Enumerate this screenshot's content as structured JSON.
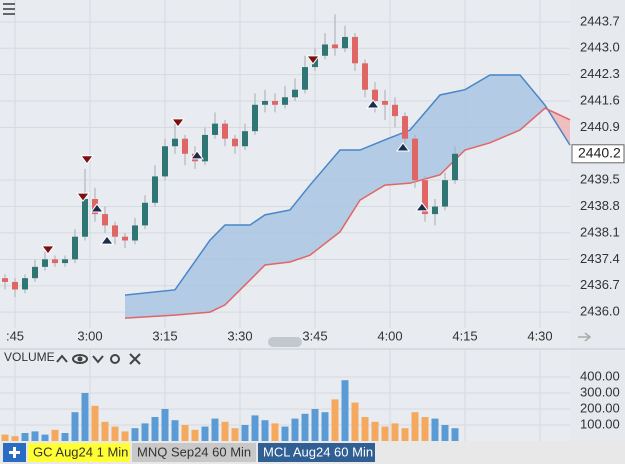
{
  "chart_data": {
    "type": "candlestick",
    "up_color": "#2f7573",
    "down_color": "#e06666",
    "x": [
      43,
      45,
      47,
      49,
      51,
      53,
      55,
      57,
      59,
      61,
      63,
      65,
      67,
      69,
      71,
      73,
      75,
      77,
      79,
      81,
      83,
      85,
      87,
      89,
      91,
      93,
      95,
      97,
      99,
      101,
      103,
      105,
      107,
      109,
      111,
      113,
      115,
      117,
      119,
      121,
      123,
      125,
      127,
      129,
      131,
      133
    ],
    "open": [
      2436.9,
      2436.8,
      2436.6,
      2436.9,
      2437.2,
      2437.4,
      2437.3,
      2437.4,
      2438.0,
      2439.0,
      2438.6,
      2438.3,
      2438.0,
      2437.9,
      2438.3,
      2438.9,
      2439.6,
      2440.4,
      2440.6,
      2440.2,
      2440.0,
      2440.7,
      2441.0,
      2440.6,
      2440.4,
      2440.8,
      2441.5,
      2441.6,
      2441.5,
      2441.7,
      2441.9,
      2442.5,
      2442.8,
      2443.1,
      2443.0,
      2443.3,
      2442.6,
      2441.9,
      2441.6,
      2441.5,
      2441.2,
      2440.6,
      2439.5,
      2438.6,
      2438.8,
      2439.5
    ],
    "high": [
      2437.0,
      2436.9,
      2437.0,
      2437.4,
      2437.6,
      2437.5,
      2437.5,
      2438.2,
      2439.8,
      2439.3,
      2438.8,
      2438.4,
      2438.1,
      2438.5,
      2439.1,
      2439.9,
      2440.6,
      2441.0,
      2440.7,
      2440.4,
      2440.9,
      2441.3,
      2441.1,
      2440.7,
      2441.0,
      2441.8,
      2441.9,
      2441.8,
      2442.0,
      2442.2,
      2442.8,
      2443.0,
      2443.4,
      2443.9,
      2443.6,
      2443.4,
      2442.7,
      2442.1,
      2441.9,
      2441.7,
      2441.3,
      2440.7,
      2439.6,
      2439.0,
      2439.7,
      2440.4
    ],
    "low": [
      2436.6,
      2436.4,
      2436.5,
      2436.8,
      2437.1,
      2437.2,
      2437.2,
      2437.3,
      2437.9,
      2438.4,
      2438.1,
      2437.8,
      2437.7,
      2437.8,
      2438.2,
      2438.8,
      2439.5,
      2440.2,
      2439.9,
      2439.8,
      2439.9,
      2440.6,
      2440.4,
      2440.2,
      2440.3,
      2440.7,
      2441.3,
      2441.3,
      2441.4,
      2441.6,
      2441.8,
      2442.4,
      2442.7,
      2442.8,
      2442.9,
      2442.4,
      2441.7,
      2441.3,
      2441.1,
      2440.9,
      2440.3,
      2439.3,
      2438.4,
      2438.3,
      2438.7,
      2439.4
    ],
    "close": [
      2436.8,
      2436.6,
      2436.9,
      2437.2,
      2437.4,
      2437.3,
      2437.4,
      2438.0,
      2439.0,
      2438.6,
      2438.3,
      2438.0,
      2437.9,
      2438.3,
      2438.9,
      2439.6,
      2440.4,
      2440.6,
      2440.2,
      2440.0,
      2440.7,
      2441.0,
      2440.6,
      2440.4,
      2440.8,
      2441.5,
      2441.6,
      2441.5,
      2441.7,
      2441.9,
      2442.5,
      2442.8,
      2443.1,
      2443.0,
      2443.3,
      2442.6,
      2441.9,
      2441.6,
      2441.5,
      2441.2,
      2440.6,
      2439.5,
      2438.6,
      2438.8,
      2439.5,
      2440.2
    ],
    "xlim": [
      42,
      156
    ],
    "xticks": [
      {
        "value": 45,
        "label": ":45"
      },
      {
        "value": 60,
        "label": "3:00"
      },
      {
        "value": 75,
        "label": "3:15"
      },
      {
        "value": 90,
        "label": "3:30"
      },
      {
        "value": 105,
        "label": "3:45"
      },
      {
        "value": 120,
        "label": "4:00"
      },
      {
        "value": 135,
        "label": "4:15"
      },
      {
        "value": 150,
        "label": "4:30"
      }
    ],
    "ylim": [
      2435.79,
      2444.28
    ],
    "yticks": [
      2443.7,
      {
        "value": 2443.0,
        "label": "2443.0"
      },
      2442.3,
      2441.6,
      2440.9,
      2439.5,
      2438.8,
      2438.1,
      2437.4,
      2436.7,
      {
        "value": 2436.0,
        "label": "2436.0"
      }
    ],
    "grid": true,
    "last_price": 2440.2,
    "cloud": {
      "up_color": "#a9c6e3",
      "down_color": "#eeb6b8",
      "line_a_color": "#4a86c8",
      "line_b_color": "#e06666",
      "x": [
        67,
        77,
        84,
        87,
        92,
        95,
        100,
        104,
        110,
        114,
        119,
        124,
        130,
        135,
        140,
        146,
        151,
        156
      ],
      "span_a": [
        2436.45,
        2436.59,
        2437.91,
        2438.31,
        2438.31,
        2438.58,
        2438.71,
        2439.37,
        2440.3,
        2440.3,
        2440.57,
        2440.83,
        2441.76,
        2441.9,
        2442.29,
        2442.29,
        2441.49,
        2440.43
      ],
      "span_b": [
        2435.84,
        2435.92,
        2436.0,
        2436.19,
        2436.85,
        2437.25,
        2437.33,
        2437.51,
        2438.13,
        2438.97,
        2439.37,
        2439.42,
        2439.64,
        2440.3,
        2440.49,
        2440.83,
        2441.41,
        2441.1
      ]
    },
    "signals": {
      "sell_color": "#7a1010",
      "buy_color": "#1b2d4f",
      "sell": [
        {
          "x": 51.6,
          "y": 2437.65
        },
        {
          "x": 59.4,
          "y": 2440.04
        },
        {
          "x": 58.6,
          "y": 2439.05
        },
        {
          "x": 77.6,
          "y": 2441.02
        },
        {
          "x": 104.6,
          "y": 2442.69
        }
      ],
      "buy": [
        {
          "x": 61.4,
          "y": 2438.76
        },
        {
          "x": 63.4,
          "y": 2437.91
        },
        {
          "x": 81.4,
          "y": 2440.17
        },
        {
          "x": 116.6,
          "y": 2441.52
        },
        {
          "x": 122.6,
          "y": 2440.38
        },
        {
          "x": 126.4,
          "y": 2438.79
        }
      ]
    },
    "volume": {
      "title": "VOLUME",
      "up_color": "#5b9bd5",
      "down_color": "#f4a95e",
      "values": [
        40,
        30,
        50,
        60,
        40,
        70,
        50,
        180,
        300,
        220,
        120,
        90,
        60,
        80,
        110,
        150,
        200,
        130,
        100,
        70,
        90,
        140,
        120,
        80,
        100,
        160,
        130,
        110,
        90,
        140,
        170,
        200,
        180,
        260,
        380,
        240,
        150,
        120,
        90,
        110,
        80,
        180,
        150,
        140,
        100,
        80
      ],
      "ylim": [
        0,
        475
      ],
      "yticks": [
        {
          "value": 400,
          "label": "400.00"
        },
        {
          "value": 300,
          "label": "300.00"
        },
        {
          "value": 200,
          "label": "200.00"
        },
        {
          "value": 100,
          "label": "100.00"
        }
      ]
    }
  },
  "tabs": [
    "GC Aug24 1 Min",
    "MNQ Sep24 60 Min",
    "MCL Aug24 60 Min"
  ]
}
